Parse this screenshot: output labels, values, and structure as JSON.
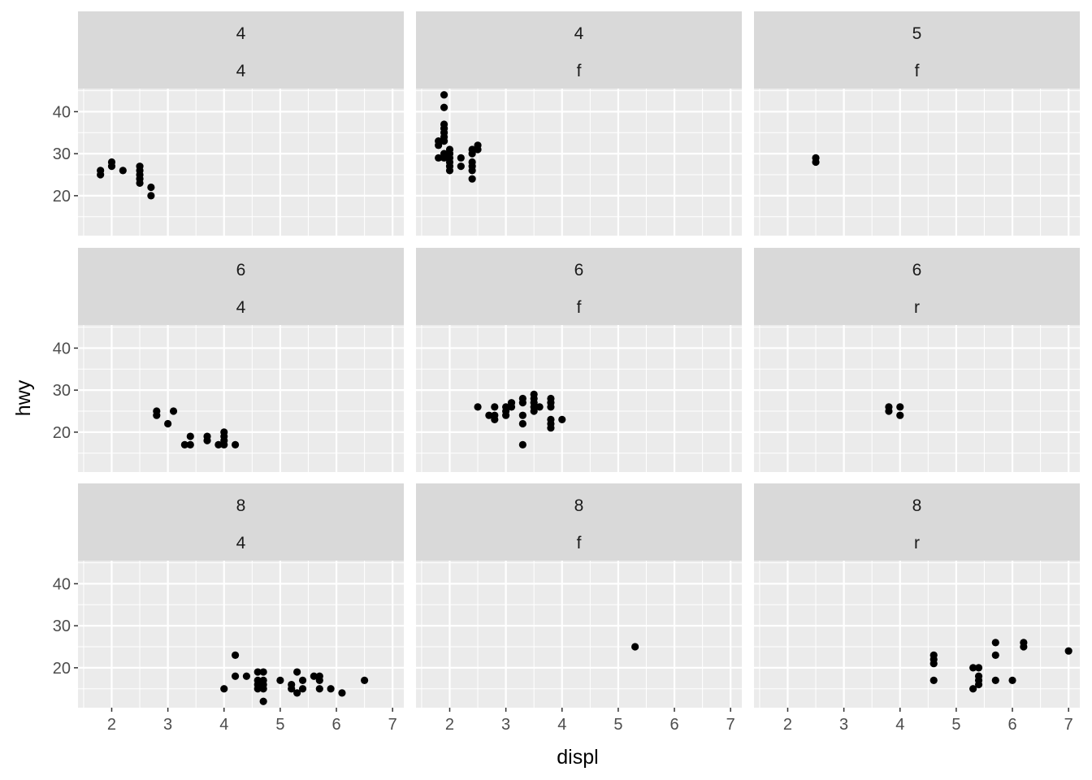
{
  "chart_data": {
    "type": "scatter",
    "xlabel": "displ",
    "ylabel": "hwy",
    "xlim": [
      1.4,
      7.2
    ],
    "ylim": [
      10.5,
      45.5
    ],
    "x_ticks": [
      2,
      3,
      4,
      5,
      6,
      7
    ],
    "y_ticks": [
      20,
      30,
      40
    ],
    "grid": true,
    "colors": {
      "panel": "#ebebeb",
      "strip": "#d9d9d9",
      "grid": "#ffffff",
      "point": "#000000"
    },
    "panels": [
      {
        "row": 0,
        "col": 0,
        "strip": [
          "4",
          "4"
        ],
        "points": [
          [
            1.8,
            26
          ],
          [
            1.8,
            25
          ],
          [
            2.0,
            28
          ],
          [
            2.0,
            27
          ],
          [
            2.2,
            26
          ],
          [
            2.5,
            27
          ],
          [
            2.5,
            26
          ],
          [
            2.5,
            25
          ],
          [
            2.5,
            24
          ],
          [
            2.5,
            23
          ],
          [
            2.7,
            22
          ],
          [
            2.7,
            20
          ]
        ]
      },
      {
        "row": 0,
        "col": 1,
        "strip": [
          "4",
          "f"
        ],
        "points": [
          [
            1.8,
            33
          ],
          [
            1.8,
            32
          ],
          [
            1.8,
            29
          ],
          [
            1.9,
            44
          ],
          [
            1.9,
            41
          ],
          [
            1.9,
            37
          ],
          [
            1.9,
            36
          ],
          [
            1.9,
            35
          ],
          [
            1.9,
            34
          ],
          [
            1.9,
            33
          ],
          [
            1.9,
            30
          ],
          [
            1.9,
            29
          ],
          [
            2.0,
            31
          ],
          [
            2.0,
            30
          ],
          [
            2.0,
            29
          ],
          [
            2.0,
            28
          ],
          [
            2.0,
            27
          ],
          [
            2.0,
            26
          ],
          [
            2.2,
            29
          ],
          [
            2.2,
            27
          ],
          [
            2.4,
            31
          ],
          [
            2.4,
            30
          ],
          [
            2.4,
            28
          ],
          [
            2.4,
            27
          ],
          [
            2.4,
            26
          ],
          [
            2.4,
            24
          ],
          [
            2.5,
            32
          ],
          [
            2.5,
            31
          ]
        ]
      },
      {
        "row": 0,
        "col": 2,
        "strip": [
          "5",
          "f"
        ],
        "points": [
          [
            2.5,
            29
          ],
          [
            2.5,
            28
          ]
        ]
      },
      {
        "row": 1,
        "col": 0,
        "strip": [
          "6",
          "4"
        ],
        "points": [
          [
            2.8,
            25
          ],
          [
            2.8,
            24
          ],
          [
            3.0,
            22
          ],
          [
            3.1,
            25
          ],
          [
            3.3,
            17
          ],
          [
            3.4,
            19
          ],
          [
            3.4,
            17
          ],
          [
            3.7,
            19
          ],
          [
            3.7,
            18
          ],
          [
            3.9,
            17
          ],
          [
            4.0,
            20
          ],
          [
            4.0,
            19
          ],
          [
            4.0,
            18
          ],
          [
            4.0,
            17
          ],
          [
            4.2,
            17
          ]
        ]
      },
      {
        "row": 1,
        "col": 1,
        "strip": [
          "6",
          "f"
        ],
        "points": [
          [
            2.5,
            26
          ],
          [
            2.7,
            24
          ],
          [
            2.8,
            26
          ],
          [
            2.8,
            24
          ],
          [
            2.8,
            23
          ],
          [
            3.0,
            26
          ],
          [
            3.0,
            25
          ],
          [
            3.0,
            24
          ],
          [
            3.1,
            27
          ],
          [
            3.1,
            26
          ],
          [
            3.3,
            28
          ],
          [
            3.3,
            27
          ],
          [
            3.3,
            24
          ],
          [
            3.3,
            22
          ],
          [
            3.3,
            17
          ],
          [
            3.5,
            29
          ],
          [
            3.5,
            28
          ],
          [
            3.5,
            27
          ],
          [
            3.5,
            26
          ],
          [
            3.5,
            25
          ],
          [
            3.6,
            26
          ],
          [
            3.8,
            28
          ],
          [
            3.8,
            27
          ],
          [
            3.8,
            26
          ],
          [
            3.8,
            23
          ],
          [
            3.8,
            22
          ],
          [
            3.8,
            21
          ],
          [
            4.0,
            23
          ]
        ]
      },
      {
        "row": 1,
        "col": 2,
        "strip": [
          "6",
          "r"
        ],
        "points": [
          [
            3.8,
            26
          ],
          [
            3.8,
            25
          ],
          [
            4.0,
            26
          ],
          [
            4.0,
            24
          ]
        ]
      },
      {
        "row": 2,
        "col": 0,
        "strip": [
          "8",
          "4"
        ],
        "points": [
          [
            4.0,
            15
          ],
          [
            4.2,
            23
          ],
          [
            4.2,
            18
          ],
          [
            4.4,
            18
          ],
          [
            4.6,
            19
          ],
          [
            4.6,
            17
          ],
          [
            4.6,
            16
          ],
          [
            4.6,
            15
          ],
          [
            4.7,
            19
          ],
          [
            4.7,
            17
          ],
          [
            4.7,
            16
          ],
          [
            4.7,
            15
          ],
          [
            4.7,
            12
          ],
          [
            5.0,
            17
          ],
          [
            5.2,
            16
          ],
          [
            5.2,
            15
          ],
          [
            5.3,
            19
          ],
          [
            5.3,
            14
          ],
          [
            5.4,
            17
          ],
          [
            5.4,
            15
          ],
          [
            5.6,
            18
          ],
          [
            5.7,
            18
          ],
          [
            5.7,
            17
          ],
          [
            5.7,
            15
          ],
          [
            5.9,
            15
          ],
          [
            6.1,
            14
          ],
          [
            6.5,
            17
          ]
        ]
      },
      {
        "row": 2,
        "col": 1,
        "strip": [
          "8",
          "f"
        ],
        "points": [
          [
            5.3,
            25
          ]
        ]
      },
      {
        "row": 2,
        "col": 2,
        "strip": [
          "8",
          "r"
        ],
        "points": [
          [
            4.6,
            23
          ],
          [
            4.6,
            22
          ],
          [
            4.6,
            21
          ],
          [
            4.6,
            17
          ],
          [
            5.3,
            20
          ],
          [
            5.3,
            15
          ],
          [
            5.4,
            20
          ],
          [
            5.4,
            18
          ],
          [
            5.4,
            17
          ],
          [
            5.4,
            16
          ],
          [
            5.7,
            26
          ],
          [
            5.7,
            23
          ],
          [
            5.7,
            17
          ],
          [
            6.0,
            17
          ],
          [
            6.2,
            26
          ],
          [
            6.2,
            25
          ],
          [
            7.0,
            24
          ]
        ]
      }
    ]
  }
}
